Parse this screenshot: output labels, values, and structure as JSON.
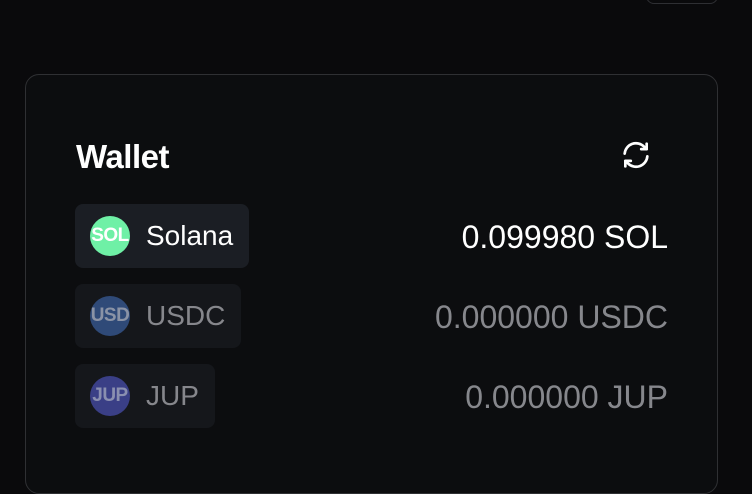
{
  "wallet": {
    "title": "Wallet",
    "refresh_icon": "refresh-icon",
    "tokens": [
      {
        "symbol": "SOL",
        "name": "Solana",
        "balance": "0.099980 SOL",
        "logo_bg": "#6ff0a6",
        "logo_text_color": "#ffffff",
        "active": true
      },
      {
        "symbol": "USD",
        "name": "USDC",
        "balance": "0.000000 USDC",
        "logo_bg": "#2f4a78",
        "logo_text_color": "#8a93a6",
        "active": false
      },
      {
        "symbol": "JUP",
        "name": "JUP",
        "balance": "0.000000 JUP",
        "logo_bg": "#3a3f86",
        "logo_text_color": "#8a8fb0",
        "active": false
      }
    ]
  },
  "colors": {
    "page_bg": "#0a0a0c",
    "card_border": "#2f3033",
    "text_active": "#ffffff",
    "text_muted": "#86878c"
  }
}
